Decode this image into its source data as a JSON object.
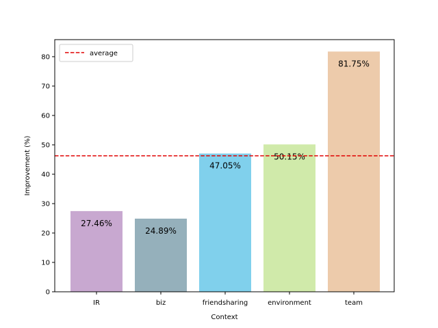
{
  "chart_data": {
    "type": "bar",
    "categories": [
      "IR",
      "biz",
      "friendsharing",
      "environment",
      "team"
    ],
    "values": [
      27.46,
      24.89,
      47.05,
      50.15,
      81.75
    ],
    "value_labels": [
      "27.46%",
      "24.89%",
      "47.05%",
      "50.15%",
      "81.75%"
    ],
    "bar_colors": [
      "#c8a8d0",
      "#95b0bb",
      "#80d0ec",
      "#d0eaaa",
      "#edcbab"
    ],
    "average": 46.26,
    "average_color": "#e00000",
    "legend": {
      "entries": [
        "average"
      ],
      "placement": "upper-left"
    },
    "title": "",
    "xlabel": "Context",
    "ylabel": "Improvement (%)",
    "ylim": [
      0,
      85.8
    ],
    "yticks": [
      0,
      10,
      20,
      30,
      40,
      50,
      60,
      70,
      80
    ],
    "grid": false
  }
}
